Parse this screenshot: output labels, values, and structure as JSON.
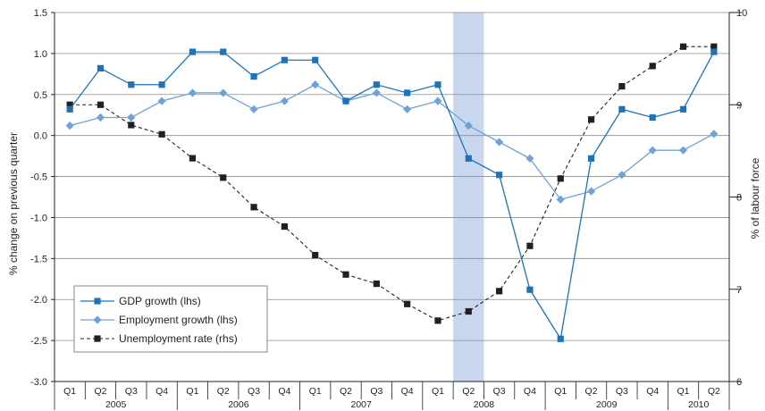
{
  "chart_data": {
    "type": "line",
    "x": [
      "Q1",
      "Q2",
      "Q3",
      "Q4",
      "Q1",
      "Q2",
      "Q3",
      "Q4",
      "Q1",
      "Q2",
      "Q3",
      "Q4",
      "Q1",
      "Q2",
      "Q3",
      "Q4",
      "Q1",
      "Q2",
      "Q3",
      "Q4",
      "Q1",
      "Q2"
    ],
    "years": [
      {
        "label": "2005",
        "start": 0,
        "end": 3
      },
      {
        "label": "2006",
        "start": 4,
        "end": 7
      },
      {
        "label": "2007",
        "start": 8,
        "end": 11
      },
      {
        "label": "2008",
        "start": 12,
        "end": 15
      },
      {
        "label": "2009",
        "start": 16,
        "end": 19
      },
      {
        "label": "2010",
        "start": 20,
        "end": 21
      }
    ],
    "highlight_index": 13,
    "highlight_color": "#c9d7ee",
    "ylabel_left": "% change on previous quarter",
    "ylabel_right": "% of labour force",
    "ylim_left": [
      -3.0,
      1.5
    ],
    "ylim_right": [
      6,
      10
    ],
    "yticks_left": [
      "1.5",
      "1.0",
      "0.5",
      "0.0",
      "-0.5",
      "-1.0",
      "-1.5",
      "-2.0",
      "-2.5",
      "-3.0"
    ],
    "yticks_right": [
      "10",
      "9",
      "8",
      "7",
      "6"
    ],
    "grid": true,
    "legend_position": "bottom-left",
    "series": [
      {
        "name": "GDP growth (lhs)",
        "axis": "left",
        "color": "#1e73b6",
        "marker": "square",
        "line": "solid",
        "values": [
          0.32,
          0.82,
          0.62,
          0.62,
          1.02,
          1.02,
          0.72,
          0.92,
          0.92,
          0.42,
          0.62,
          0.52,
          0.62,
          -0.28,
          -0.48,
          -1.88,
          -2.48,
          -0.28,
          0.32,
          0.22,
          0.32,
          1.02
        ]
      },
      {
        "name": "Employment growth (lhs)",
        "axis": "left",
        "color": "#6fa3d8",
        "marker": "diamond",
        "line": "solid",
        "values": [
          0.12,
          0.22,
          0.22,
          0.42,
          0.52,
          0.52,
          0.32,
          0.42,
          0.62,
          0.42,
          0.52,
          0.32,
          0.42,
          0.12,
          -0.08,
          -0.28,
          -0.78,
          -0.68,
          -0.48,
          -0.18,
          -0.18,
          0.02
        ]
      },
      {
        "name": "Unemployment rate (rhs)",
        "axis": "right",
        "color": "#231f20",
        "marker": "square",
        "line": "dashed",
        "values": [
          9.0,
          9.0,
          8.78,
          8.68,
          8.42,
          8.21,
          7.89,
          7.68,
          7.37,
          7.16,
          7.06,
          6.84,
          6.66,
          6.76,
          6.98,
          7.47,
          8.2,
          8.84,
          9.2,
          9.42,
          9.63,
          9.63
        ]
      }
    ]
  }
}
